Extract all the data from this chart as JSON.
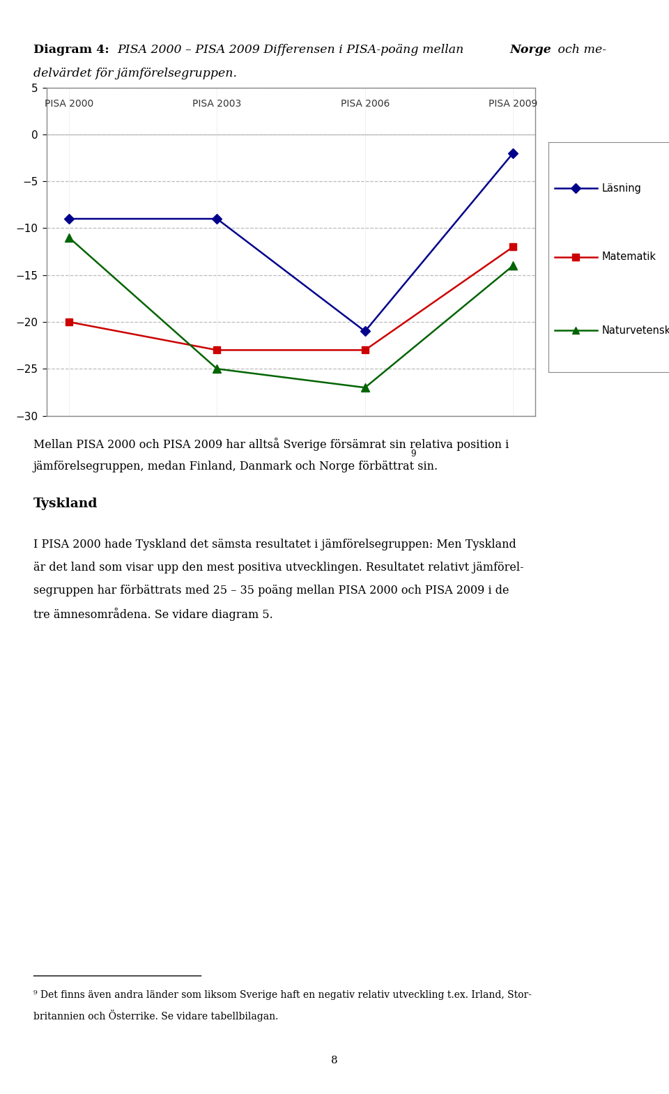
{
  "title_bold_prefix": "Diagram 4",
  "title_colon": ":",
  "title_italic": "PISA 2000 – PISA 2009 Differensen i PISA-poäng mellan ",
  "title_bold_norge": "Norge",
  "title_italic_end1": " och me-",
  "title_italic_end2": "delvärdet för jämförelsegruppen.",
  "x_labels": [
    "PISA 2000",
    "PISA 2003",
    "PISA 2006",
    "PISA 2009"
  ],
  "x_values": [
    0,
    1,
    2,
    3
  ],
  "lasning": [
    -9,
    -9,
    -21,
    -2
  ],
  "matematik": [
    -20,
    -23,
    -23,
    -12
  ],
  "naturvetenskap": [
    -11,
    -25,
    -27,
    -14
  ],
  "lasning_color": "#00008B",
  "matematik_color": "#CC0000",
  "naturvetenskap_color": "#006400",
  "ylim_min": -30,
  "ylim_max": 5,
  "yticks": [
    5,
    0,
    -5,
    -10,
    -15,
    -20,
    -25,
    -30
  ],
  "legend_labels": [
    "Läsning",
    "Matematik",
    "Naturvetenskap"
  ],
  "para1_normal": "Mellan PISA 2000 och PISA 2009 har alltså Sverige försämrat sin relativa position i jämförelsegruppen, medan Finland, Danmark och Norge förbättrat sin.",
  "section_title": "Tyskland",
  "para2": "I PISA 2000 hade Tyskland det sämsta resultatet i jämförelsegruppen: Men Tyskland är det land som visar upp den mest positiva utvecklingen. Resultatet relativt jämförel-segruppen har förbättrats med 25 – 35 poäng mellan PISA 2000 och PISA 2009 i de tre ämnesområdena. Se vidare diagram 5.",
  "footnote_sup": "9",
  "footnote_line1": "Det finns även andra länder som liksom Sverige haft en negativ relativ utveckling t.ex. Irland, Stor-",
  "footnote_line2": "britannien och Österrike. Se vidare tabellbilagan.",
  "page_number": "8",
  "background_color": "#ffffff",
  "chart_border_color": "#888888",
  "grid_color": "#bbbbbb",
  "x_label_color": "#333333",
  "tick_label_color": "#000000"
}
